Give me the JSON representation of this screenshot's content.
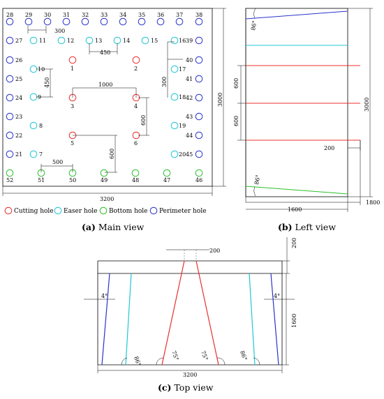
{
  "colors": {
    "cutting": "#e8302c",
    "easer": "#1fc7d4",
    "bottom": "#2bbf2b",
    "perimeter": "#2a33c9"
  },
  "main": {
    "perimeter_top_labels": [
      "28",
      "29",
      "30",
      "31",
      "32",
      "33",
      "34",
      "35",
      "36",
      "37",
      "38"
    ],
    "left_labels": [
      "27",
      "26",
      "25",
      "24",
      "23",
      "22",
      "21"
    ],
    "right_labels": [
      "39",
      "40",
      "41",
      "42",
      "43",
      "44",
      "45"
    ],
    "bottom_labels": [
      "52",
      "51",
      "50",
      "49",
      "48",
      "47",
      "46"
    ],
    "easer_labels": [
      "11",
      "12",
      "13",
      "14",
      "15",
      "16",
      "10",
      "17",
      "9",
      "18",
      "8",
      "19",
      "7",
      "20"
    ],
    "cutting_labels": [
      "1",
      "2",
      "3",
      "4",
      "5",
      "6"
    ],
    "dims": {
      "d300_top": "300",
      "d450_top": "450",
      "d300_right": "300",
      "d450_left": "450",
      "d1000": "1000",
      "d600_right": "600",
      "d600_bottom": "600",
      "d500": "500",
      "d3000": "3000",
      "d3200": "3200"
    }
  },
  "legend": [
    {
      "label": "Cutting hole",
      "color_key": "cutting"
    },
    {
      "label": "Easer hole",
      "color_key": "easer"
    },
    {
      "label": "Bottom hole",
      "color_key": "bottom"
    },
    {
      "label": "Perimeter hole",
      "color_key": "perimeter"
    }
  ],
  "left_view": {
    "angle_top": "86°",
    "angle_bottom": "86°",
    "d600_a": "600",
    "d600_b": "600",
    "d200": "200",
    "d3000": "3000",
    "d1600": "1600",
    "d1800": "1800"
  },
  "top_view": {
    "d200_top": "200",
    "d200_right": "200",
    "d1600": "1600",
    "d3200": "3200",
    "angle_left": "4°",
    "angle_right": "4°",
    "angle_86_left": "86°",
    "angle_75_left": "75°",
    "angle_75_right": "75°",
    "angle_86_right": "86°"
  },
  "captions": {
    "a_bold": "(a)",
    "a_text": " Main view",
    "b_bold": "(b)",
    "b_text": " Left view",
    "c_bold": "(c)",
    "c_text": " Top view"
  }
}
